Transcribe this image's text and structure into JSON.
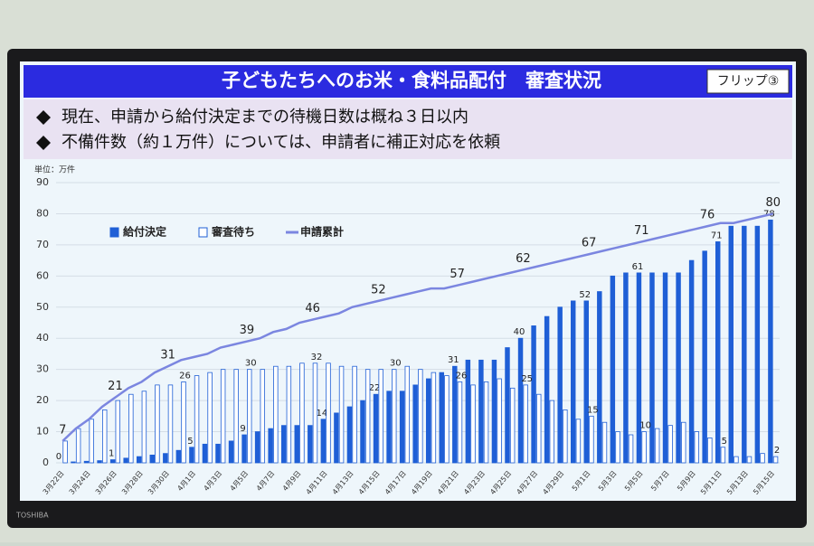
{
  "header": {
    "title": "子どもたちへのお米・食料品配付　審査状況",
    "button": "フリップ③"
  },
  "bullets": [
    "現在、申請から給付決定までの待機日数は概ね３日以内",
    "不備件数（約１万件）については、申請者に補正対応を依頼"
  ],
  "brand": "TOSHIBA",
  "chart_data": {
    "type": "bar",
    "unit_label": "単位：万件",
    "categories": [
      "3月22日",
      null,
      "3月24日",
      null,
      "3月26日",
      null,
      "3月28日",
      null,
      "3月30日",
      null,
      "4月1日",
      null,
      "4月3日",
      null,
      "4月5日",
      null,
      "4月7日",
      null,
      "4月9日",
      null,
      "4月11日",
      null,
      "4月13日",
      null,
      "4月15日",
      null,
      "4月17日",
      null,
      "4月19日",
      null,
      "4月21日",
      null,
      "4月23日",
      null,
      "4月25日",
      null,
      "4月27日",
      null,
      "4月29日",
      null,
      "5月1日",
      null,
      "5月3日",
      null,
      "5月5日",
      null,
      "5月7日",
      null,
      "5月9日",
      null,
      "5月11日",
      null,
      "5月13日",
      null,
      "5月15日"
    ],
    "series": [
      {
        "name": "給付決定",
        "type": "bar",
        "color": "#1f5fd6",
        "values": [
          0,
          0.3,
          0.5,
          0.7,
          1,
          1.5,
          2,
          2.5,
          3,
          4,
          5,
          6,
          6,
          7,
          9,
          10,
          11,
          12,
          12,
          12,
          14,
          16,
          18,
          20,
          22,
          23,
          23,
          25,
          27,
          29,
          31,
          33,
          33,
          33,
          37,
          40,
          44,
          47,
          50,
          52,
          52,
          55,
          60,
          61,
          61,
          61,
          61,
          61,
          65,
          68,
          71,
          76,
          76,
          76,
          78
        ],
        "labels_at": [
          0,
          4,
          10,
          14,
          20,
          24,
          30,
          35,
          40,
          44,
          50,
          54
        ]
      },
      {
        "name": "審査待ち",
        "type": "bar",
        "color": "#ffffff",
        "values": [
          7,
          11,
          14,
          17,
          20,
          22,
          23,
          25,
          25,
          26,
          28,
          29,
          30,
          30,
          30,
          30,
          31,
          31,
          32,
          32,
          32,
          31,
          31,
          30,
          30,
          30,
          31,
          30,
          29,
          28,
          26,
          25,
          26,
          27,
          24,
          25,
          22,
          20,
          17,
          14,
          15,
          13,
          10,
          9,
          10,
          11,
          12,
          13,
          10,
          8,
          5,
          2,
          2,
          3,
          2
        ],
        "labels_at": [
          9,
          14,
          19,
          25,
          30,
          35,
          40,
          44,
          50,
          54
        ]
      },
      {
        "name": "申請累計",
        "type": "line",
        "color": "#7b86e0",
        "values": [
          7,
          11,
          14,
          18,
          21,
          24,
          26,
          29,
          31,
          33,
          34,
          35,
          37,
          38,
          39,
          40,
          42,
          43,
          45,
          46,
          47,
          48,
          50,
          51,
          52,
          53,
          54,
          55,
          56,
          56,
          57,
          58,
          59,
          60,
          61,
          62,
          63,
          64,
          65,
          66,
          67,
          68,
          69,
          70,
          71,
          72,
          73,
          74,
          75,
          76,
          77,
          77,
          78,
          79,
          80
        ],
        "labels_at": [
          0,
          4,
          8,
          14,
          19,
          24,
          30,
          35,
          40,
          44,
          49,
          54
        ]
      }
    ],
    "ylim": [
      0,
      90
    ],
    "yticks": [
      0,
      10,
      20,
      30,
      40,
      50,
      60,
      70,
      80,
      90
    ],
    "legend": "upper left"
  }
}
